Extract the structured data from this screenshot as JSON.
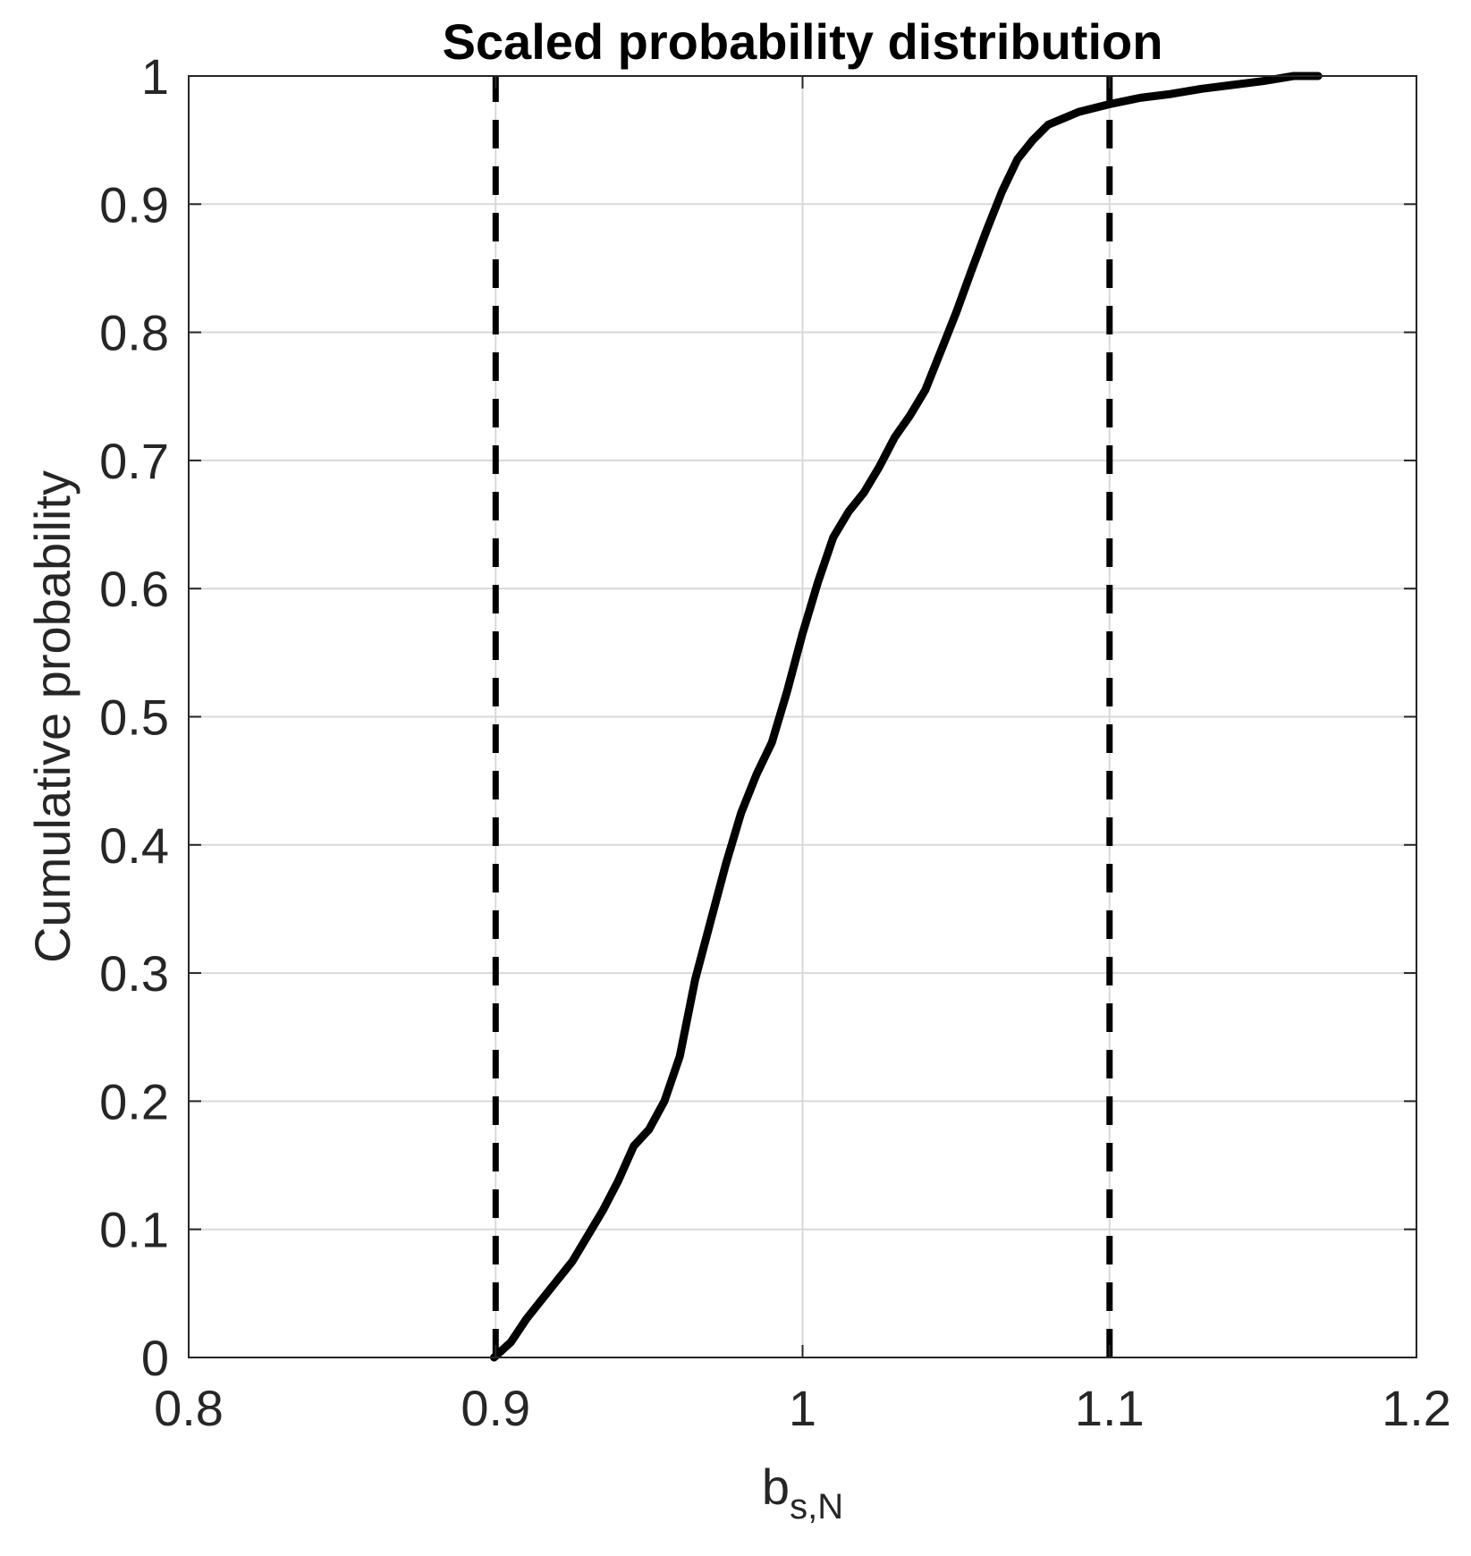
{
  "chart_data": {
    "type": "line",
    "title": "Scaled probability distribution",
    "xlabel": {
      "base": "b",
      "subscript": "s,N"
    },
    "ylabel": "Cumulative probability",
    "xlim": [
      0.8,
      1.2
    ],
    "ylim": [
      0,
      1
    ],
    "xticks": [
      0.8,
      0.9,
      1.0,
      1.1,
      1.2
    ],
    "xtick_labels": [
      "0.8",
      "0.9",
      "1",
      "1.1",
      "1.2"
    ],
    "yticks": [
      0,
      0.1,
      0.2,
      0.3,
      0.4,
      0.5,
      0.6,
      0.7,
      0.8,
      0.9,
      1
    ],
    "ytick_labels": [
      "0",
      "0.1",
      "0.2",
      "0.3",
      "0.4",
      "0.5",
      "0.6",
      "0.7",
      "0.8",
      "0.9",
      "1"
    ],
    "grid": true,
    "series": [
      {
        "style": "solid",
        "color": "#000000",
        "x": [
          0.8995,
          0.905,
          0.91,
          0.915,
          0.92,
          0.925,
          0.93,
          0.935,
          0.94,
          0.945,
          0.95,
          0.955,
          0.96,
          0.965,
          0.97,
          0.975,
          0.98,
          0.985,
          0.99,
          0.995,
          1.0,
          1.005,
          1.01,
          1.015,
          1.02,
          1.025,
          1.03,
          1.035,
          1.04,
          1.045,
          1.05,
          1.055,
          1.06,
          1.065,
          1.07,
          1.075,
          1.08,
          1.085,
          1.09,
          1.1,
          1.11,
          1.12,
          1.13,
          1.14,
          1.15,
          1.16,
          1.168
        ],
        "y": [
          0.0,
          0.012,
          0.03,
          0.045,
          0.06,
          0.075,
          0.095,
          0.115,
          0.138,
          0.165,
          0.178,
          0.2,
          0.235,
          0.295,
          0.34,
          0.385,
          0.425,
          0.455,
          0.48,
          0.52,
          0.565,
          0.605,
          0.64,
          0.66,
          0.675,
          0.695,
          0.718,
          0.735,
          0.755,
          0.785,
          0.815,
          0.848,
          0.88,
          0.91,
          0.935,
          0.95,
          0.962,
          0.967,
          0.972,
          0.978,
          0.983,
          0.986,
          0.99,
          0.993,
          0.996,
          1.0,
          1.0
        ]
      },
      {
        "style": "dashed",
        "color": "#000000",
        "x": [
          0.9,
          0.9
        ],
        "y": [
          0,
          1
        ]
      },
      {
        "style": "dashed",
        "color": "#000000",
        "x": [
          1.1,
          1.1
        ],
        "y": [
          0,
          1
        ]
      }
    ]
  }
}
